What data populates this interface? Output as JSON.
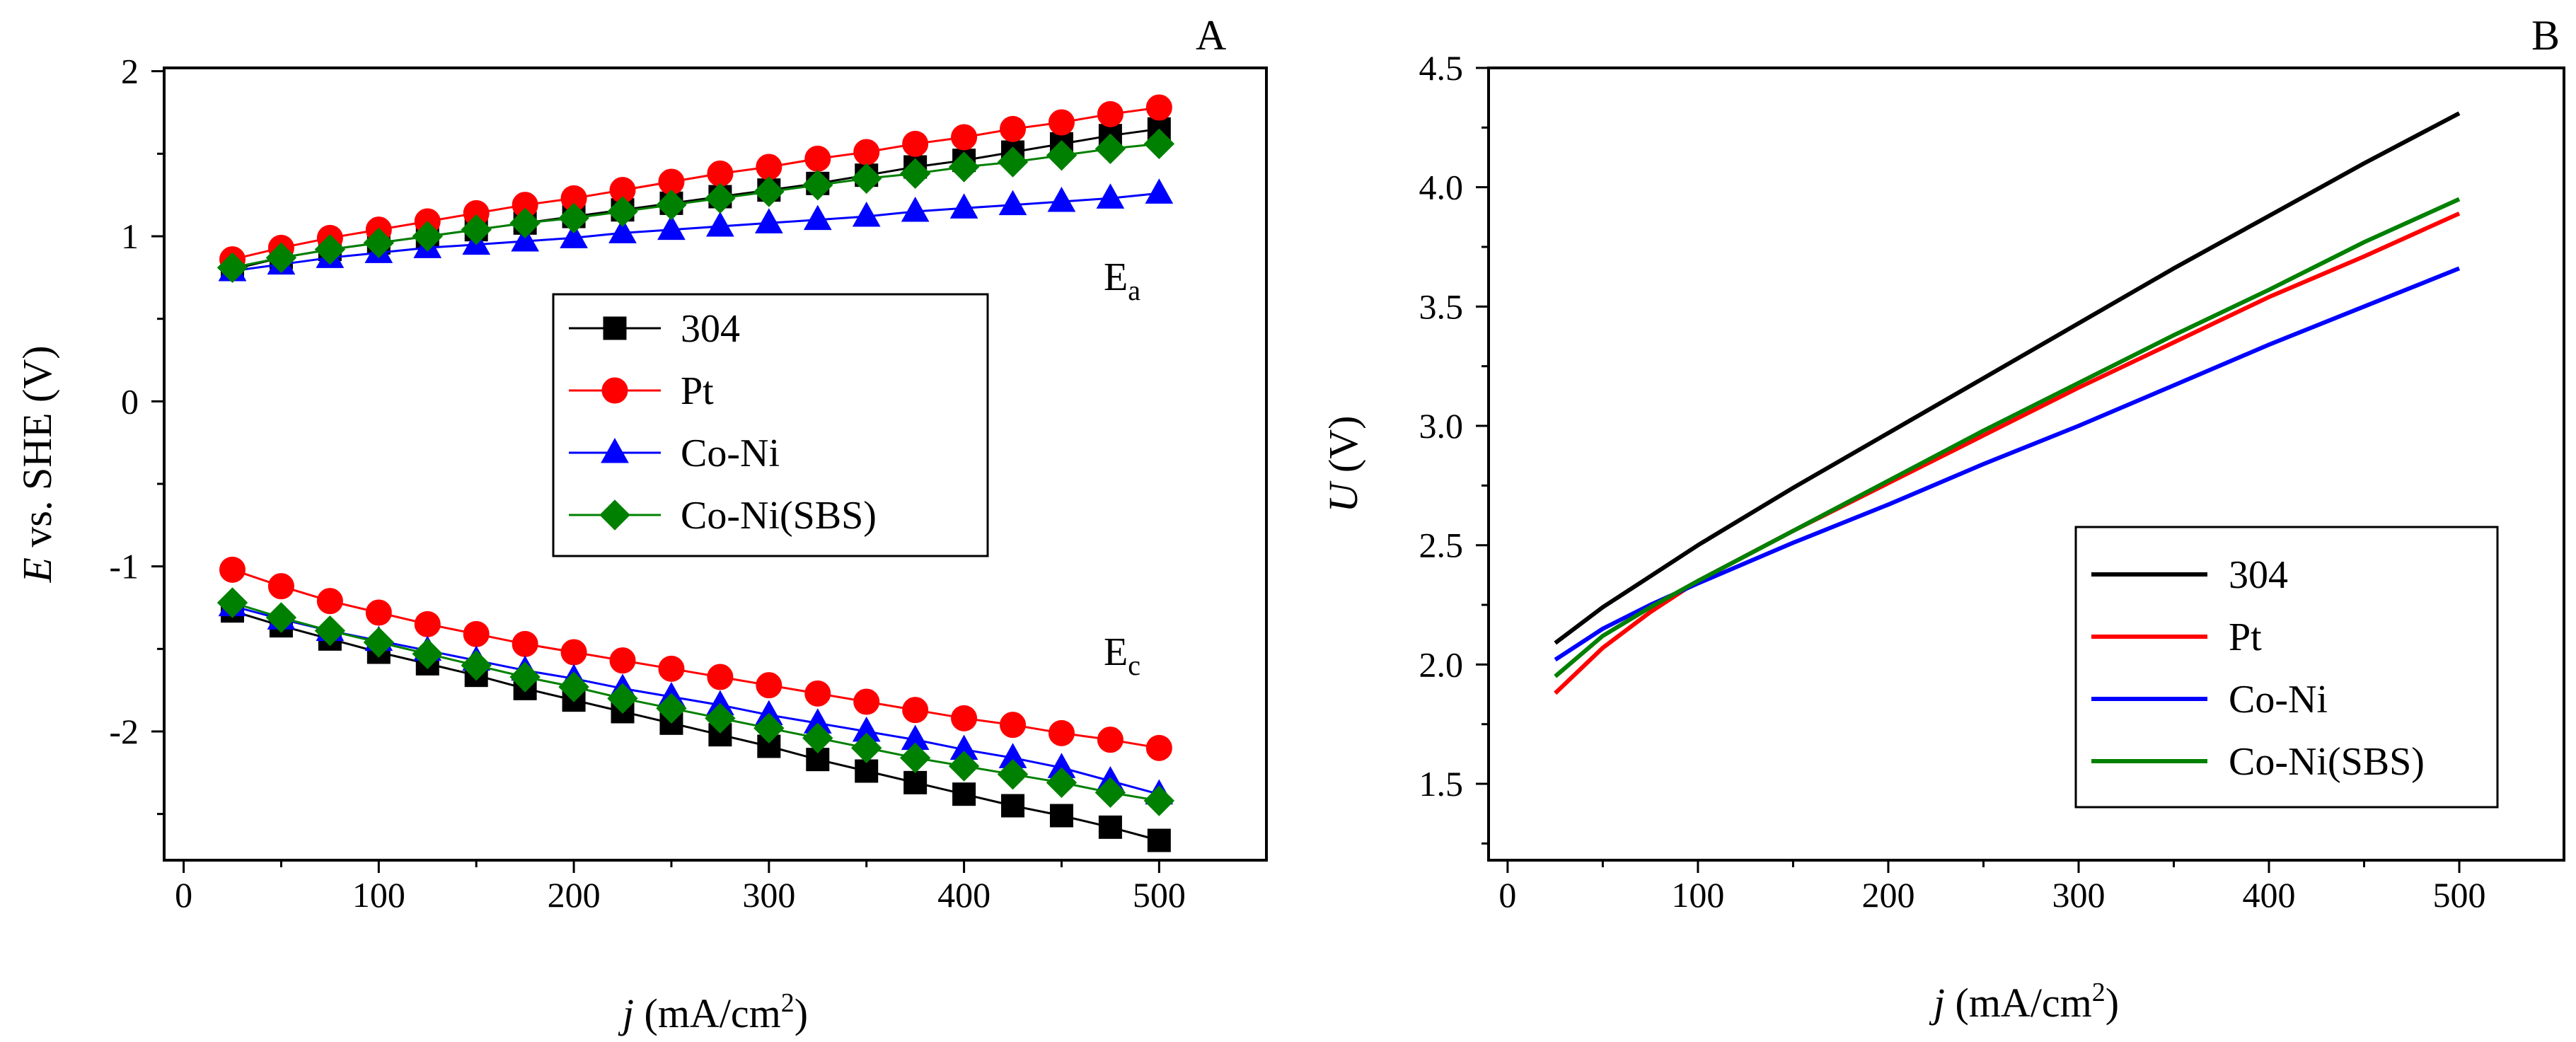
{
  "chart_data": [
    {
      "panel": "A",
      "type": "line",
      "xlabel": {
        "italic": "j",
        "rest": " (mA/cm",
        "sup": "2",
        "close": ")"
      },
      "ylabel": {
        "italic": "E",
        "rest": " vs. SHE (V)"
      },
      "xlim": [
        -10,
        555
      ],
      "ylim": [
        -2.78,
        2.02
      ],
      "xticks": [
        0,
        100,
        200,
        300,
        400,
        500
      ],
      "xtick_labels": [
        "0",
        "100",
        "200",
        "300",
        "400",
        "500"
      ],
      "yticks": [
        -2,
        -1,
        0,
        1,
        2
      ],
      "ytick_labels": [
        "-2",
        "-1",
        "0",
        "1",
        "2"
      ],
      "annotations": [
        {
          "id": "ea",
          "main": "E",
          "sub": "a"
        },
        {
          "id": "ec",
          "main": "E",
          "sub": "c"
        }
      ],
      "legend_position": "center",
      "x": [
        25,
        50,
        75,
        100,
        125,
        150,
        175,
        200,
        225,
        250,
        275,
        300,
        325,
        350,
        375,
        400,
        425,
        450,
        475,
        500
      ],
      "series": [
        {
          "name": "304",
          "color": "#000000",
          "marker": "square",
          "group": "anodic",
          "values": [
            0.8,
            0.87,
            0.92,
            0.96,
            1.0,
            1.04,
            1.08,
            1.12,
            1.16,
            1.2,
            1.24,
            1.28,
            1.32,
            1.37,
            1.42,
            1.46,
            1.51,
            1.56,
            1.61,
            1.65
          ]
        },
        {
          "name": "Pt",
          "color": "#ff0000",
          "marker": "circle",
          "group": "anodic",
          "values": [
            0.86,
            0.93,
            0.99,
            1.04,
            1.09,
            1.14,
            1.19,
            1.23,
            1.28,
            1.33,
            1.38,
            1.42,
            1.47,
            1.51,
            1.56,
            1.6,
            1.65,
            1.69,
            1.74,
            1.78
          ]
        },
        {
          "name": "Co-Ni",
          "color": "#0000ff",
          "marker": "triangle",
          "group": "anodic",
          "values": [
            0.79,
            0.83,
            0.87,
            0.9,
            0.93,
            0.95,
            0.97,
            0.99,
            1.02,
            1.04,
            1.06,
            1.08,
            1.1,
            1.12,
            1.15,
            1.17,
            1.19,
            1.21,
            1.23,
            1.26
          ]
        },
        {
          "name": "Co-Ni(SBS)",
          "color": "#008000",
          "marker": "diamond",
          "group": "anodic",
          "values": [
            0.81,
            0.87,
            0.92,
            0.96,
            1.0,
            1.04,
            1.08,
            1.11,
            1.15,
            1.19,
            1.23,
            1.27,
            1.31,
            1.35,
            1.38,
            1.42,
            1.45,
            1.49,
            1.53,
            1.56
          ]
        },
        {
          "name": "304",
          "color": "#000000",
          "marker": "square",
          "group": "cathodic",
          "values": [
            -1.27,
            -1.36,
            -1.44,
            -1.52,
            -1.59,
            -1.66,
            -1.74,
            -1.81,
            -1.88,
            -1.95,
            -2.02,
            -2.09,
            -2.17,
            -2.24,
            -2.31,
            -2.38,
            -2.45,
            -2.51,
            -2.58,
            -2.66
          ]
        },
        {
          "name": "Pt",
          "color": "#ff0000",
          "marker": "circle",
          "group": "cathodic",
          "values": [
            -1.02,
            -1.12,
            -1.21,
            -1.28,
            -1.35,
            -1.41,
            -1.47,
            -1.52,
            -1.57,
            -1.62,
            -1.67,
            -1.72,
            -1.77,
            -1.82,
            -1.87,
            -1.92,
            -1.96,
            -2.01,
            -2.05,
            -2.1
          ]
        },
        {
          "name": "Co-Ni",
          "color": "#0000ff",
          "marker": "triangle",
          "group": "cathodic",
          "values": [
            -1.24,
            -1.32,
            -1.39,
            -1.45,
            -1.51,
            -1.57,
            -1.63,
            -1.68,
            -1.74,
            -1.79,
            -1.84,
            -1.9,
            -1.95,
            -2.0,
            -2.05,
            -2.11,
            -2.16,
            -2.22,
            -2.3,
            -2.38
          ]
        },
        {
          "name": "Co-Ni(SBS)",
          "color": "#008000",
          "marker": "diamond",
          "group": "cathodic",
          "values": [
            -1.22,
            -1.31,
            -1.39,
            -1.46,
            -1.53,
            -1.6,
            -1.67,
            -1.73,
            -1.8,
            -1.86,
            -1.92,
            -1.98,
            -2.04,
            -2.1,
            -2.16,
            -2.21,
            -2.26,
            -2.31,
            -2.37,
            -2.42
          ]
        }
      ],
      "legend": [
        {
          "label": "304",
          "color": "#000000",
          "marker": "square"
        },
        {
          "label": "Pt",
          "color": "#ff0000",
          "marker": "circle"
        },
        {
          "label": "Co-Ni",
          "color": "#0000ff",
          "marker": "triangle"
        },
        {
          "label": "Co-Ni(SBS)",
          "color": "#008000",
          "marker": "diamond"
        }
      ]
    },
    {
      "panel": "B",
      "type": "line",
      "xlabel": {
        "italic": "j",
        "rest": " (mA/cm",
        "sup": "2",
        "close": ")"
      },
      "ylabel": {
        "italic": "U",
        "rest": " (V)"
      },
      "xlim": [
        -10,
        555
      ],
      "ylim": [
        1.18,
        4.5
      ],
      "xticks": [
        0,
        100,
        200,
        300,
        400,
        500
      ],
      "xtick_labels": [
        "0",
        "100",
        "200",
        "300",
        "400",
        "500"
      ],
      "yticks": [
        1.5,
        2.0,
        2.5,
        3.0,
        3.5,
        4.0,
        4.5
      ],
      "ytick_labels": [
        "1.5",
        "2.0",
        "2.5",
        "3.0",
        "3.5",
        "4.0",
        "4.5"
      ],
      "legend_position": "lower-right",
      "x": [
        25,
        50,
        75,
        100,
        150,
        200,
        250,
        300,
        350,
        400,
        450,
        500
      ],
      "series": [
        {
          "name": "304",
          "color": "#000000",
          "values": [
            2.09,
            2.24,
            2.37,
            2.5,
            2.74,
            2.97,
            3.2,
            3.43,
            3.66,
            3.88,
            4.1,
            4.31
          ]
        },
        {
          "name": "Pt",
          "color": "#ff0000",
          "values": [
            1.88,
            2.07,
            2.22,
            2.35,
            2.56,
            2.76,
            2.96,
            3.16,
            3.35,
            3.54,
            3.71,
            3.89
          ]
        },
        {
          "name": "Co-Ni",
          "color": "#0000ff",
          "values": [
            2.02,
            2.15,
            2.25,
            2.34,
            2.51,
            2.67,
            2.84,
            3.0,
            3.17,
            3.34,
            3.5,
            3.66
          ]
        },
        {
          "name": "Co-Ni(SBS)",
          "color": "#008000",
          "values": [
            1.95,
            2.12,
            2.24,
            2.35,
            2.56,
            2.77,
            2.98,
            3.18,
            3.38,
            3.57,
            3.77,
            3.95
          ]
        }
      ],
      "legend": [
        {
          "label": "304",
          "color": "#000000"
        },
        {
          "label": "Pt",
          "color": "#ff0000"
        },
        {
          "label": "Co-Ni",
          "color": "#0000ff"
        },
        {
          "label": "Co-Ni(SBS)",
          "color": "#008000"
        }
      ]
    }
  ]
}
